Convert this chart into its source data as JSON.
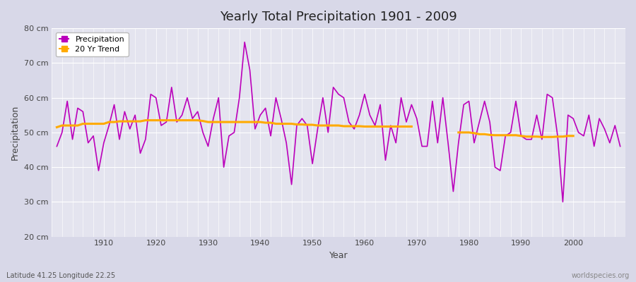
{
  "title": "Yearly Total Precipitation 1901 - 2009",
  "xlabel": "Year",
  "ylabel": "Precipitation",
  "lat_lon_label": "Latitude 41.25 Longitude 22.25",
  "watermark": "worldspecies.org",
  "ylim": [
    20,
    80
  ],
  "yticks": [
    20,
    30,
    40,
    50,
    60,
    70,
    80
  ],
  "ytick_labels": [
    "20 cm",
    "30 cm",
    "40 cm",
    "50 cm",
    "60 cm",
    "70 cm",
    "80 cm"
  ],
  "fig_bg_color": "#d8d8e8",
  "plot_bg_color": "#e4e4ef",
  "precip_color": "#bb00bb",
  "trend_color": "#ffaa00",
  "years": [
    1901,
    1902,
    1903,
    1904,
    1905,
    1906,
    1907,
    1908,
    1909,
    1910,
    1911,
    1912,
    1913,
    1914,
    1915,
    1916,
    1917,
    1918,
    1919,
    1920,
    1921,
    1922,
    1923,
    1924,
    1925,
    1926,
    1927,
    1928,
    1929,
    1930,
    1931,
    1932,
    1933,
    1934,
    1935,
    1936,
    1937,
    1938,
    1939,
    1940,
    1941,
    1942,
    1943,
    1944,
    1945,
    1946,
    1947,
    1948,
    1949,
    1950,
    1951,
    1952,
    1953,
    1954,
    1955,
    1956,
    1957,
    1958,
    1959,
    1960,
    1961,
    1962,
    1963,
    1964,
    1965,
    1966,
    1967,
    1968,
    1969,
    1970,
    1971,
    1972,
    1973,
    1974,
    1975,
    1976,
    1977,
    1978,
    1979,
    1980,
    1981,
    1982,
    1983,
    1984,
    1985,
    1986,
    1987,
    1988,
    1989,
    1990,
    1991,
    1992,
    1993,
    1994,
    1995,
    1996,
    1997,
    1998,
    1999,
    2000,
    2001,
    2002,
    2003,
    2004,
    2005,
    2006,
    2007,
    2008,
    2009
  ],
  "precip": [
    46,
    50,
    59,
    48,
    57,
    56,
    47,
    49,
    39,
    47,
    52,
    58,
    48,
    56,
    51,
    55,
    44,
    48,
    61,
    60,
    52,
    53,
    63,
    53,
    55,
    60,
    54,
    56,
    50,
    46,
    54,
    60,
    40,
    49,
    50,
    60,
    76,
    68,
    51,
    55,
    57,
    49,
    60,
    54,
    47,
    35,
    52,
    54,
    52,
    41,
    51,
    60,
    50,
    63,
    61,
    60,
    53,
    51,
    55,
    61,
    55,
    52,
    58,
    42,
    52,
    47,
    60,
    53,
    58,
    54,
    46,
    46,
    59,
    47,
    60,
    47,
    33,
    47,
    58,
    59,
    47,
    53,
    59,
    53,
    40,
    39,
    49,
    50,
    59,
    49,
    48,
    48,
    55,
    48,
    61,
    60,
    49,
    30,
    55,
    54,
    50,
    49,
    55,
    46,
    54,
    51,
    47,
    52,
    46
  ],
  "trend_segment1_years": [
    1901,
    1902,
    1903,
    1904,
    1905,
    1906,
    1907,
    1908,
    1909,
    1910,
    1911,
    1912,
    1913,
    1914,
    1915,
    1916,
    1917,
    1918,
    1919,
    1920,
    1921,
    1922,
    1923,
    1924,
    1925,
    1926,
    1927,
    1928,
    1929,
    1930,
    1931,
    1932,
    1933,
    1934,
    1935,
    1936,
    1937,
    1938,
    1939,
    1940,
    1941,
    1942,
    1943,
    1944,
    1945,
    1946,
    1947,
    1948,
    1949,
    1950,
    1951,
    1952,
    1953,
    1954,
    1955,
    1956,
    1957,
    1958,
    1959,
    1960,
    1961,
    1962,
    1963,
    1964,
    1965,
    1966,
    1967,
    1968,
    1969
  ],
  "trend_segment1": [
    51.5,
    52.0,
    52.0,
    52.0,
    52.0,
    52.5,
    52.5,
    52.5,
    52.5,
    52.5,
    53.0,
    53.0,
    53.2,
    53.2,
    53.2,
    53.2,
    53.2,
    53.5,
    53.5,
    53.5,
    53.5,
    53.5,
    53.5,
    53.5,
    53.5,
    53.5,
    53.5,
    53.5,
    53.3,
    53.0,
    53.0,
    53.0,
    53.0,
    53.0,
    53.0,
    53.0,
    53.0,
    53.0,
    53.0,
    53.0,
    52.8,
    52.8,
    52.5,
    52.5,
    52.5,
    52.5,
    52.3,
    52.3,
    52.2,
    52.2,
    52.0,
    52.0,
    52.0,
    52.0,
    52.0,
    51.8,
    51.8,
    51.8,
    51.8,
    51.7,
    51.7,
    51.7,
    51.7,
    51.7,
    51.7,
    51.7,
    51.7,
    51.7,
    51.7
  ],
  "trend_segment2_years": [
    1978,
    1979,
    1980,
    1981,
    1982,
    1983,
    1984,
    1985,
    1986,
    1987,
    1988,
    1989,
    1990,
    1991,
    1992,
    1993,
    1994,
    1995,
    1996,
    1997,
    1998,
    1999,
    2000
  ],
  "trend_segment2": [
    50.0,
    50.0,
    50.0,
    49.8,
    49.5,
    49.5,
    49.3,
    49.2,
    49.2,
    49.2,
    49.2,
    49.2,
    49.0,
    48.8,
    48.8,
    48.8,
    48.7,
    48.7,
    48.7,
    48.8,
    48.8,
    49.0,
    49.0
  ]
}
